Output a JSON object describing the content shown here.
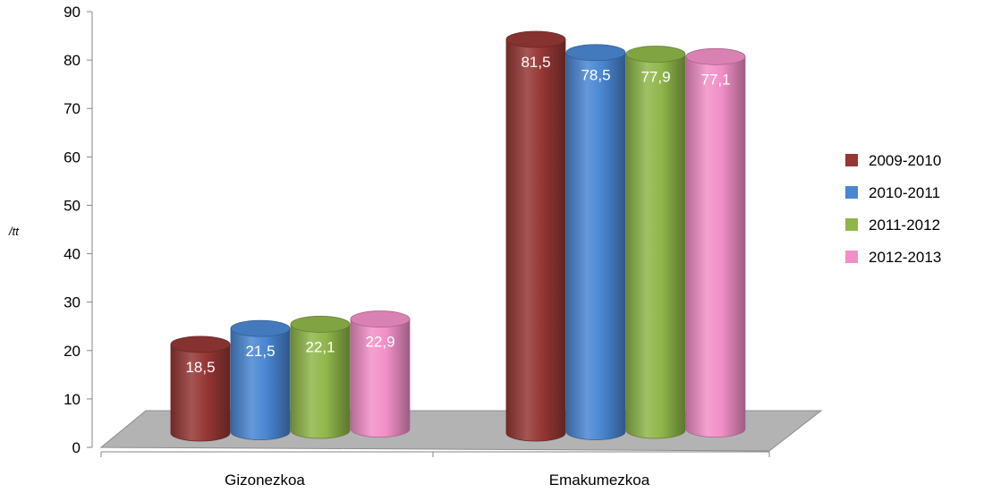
{
  "chart_data": {
    "type": "bar",
    "title": "",
    "xlabel": "",
    "ylabel": "/tt",
    "ylim": [
      0,
      90
    ],
    "yticks": [
      0,
      10,
      20,
      30,
      40,
      50,
      60,
      70,
      80,
      90
    ],
    "categories": [
      "Gizonezkoa",
      "Emakumezkoa"
    ],
    "series": [
      {
        "name": "2009-2010",
        "values": [
          18.5,
          81.5
        ],
        "labels": [
          "18,5",
          "81,5"
        ],
        "color": "#953735"
      },
      {
        "name": "2010-2011",
        "values": [
          21.5,
          78.5
        ],
        "labels": [
          "21,5",
          "78,5"
        ],
        "color": "#4a86d2"
      },
      {
        "name": "2011-2012",
        "values": [
          22.1,
          77.9
        ],
        "labels": [
          "22,1",
          "77,9"
        ],
        "color": "#8fb64a"
      },
      {
        "name": "2012-2013",
        "values": [
          22.9,
          77.1
        ],
        "labels": [
          "22,9",
          "77,1"
        ],
        "color": "#f28fc8"
      }
    ],
    "legend_position": "right",
    "grid": false,
    "style": "3d-cylinder",
    "floor_color": "#b3b3b3"
  }
}
